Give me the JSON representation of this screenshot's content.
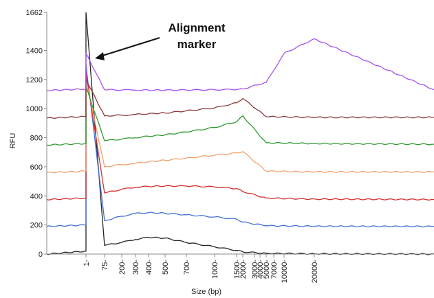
{
  "chart_data": {
    "type": "line",
    "title": "",
    "xlabel": "Size (bp)",
    "ylabel": "RFU",
    "ylim": [
      0,
      1662
    ],
    "y_ticks": [
      0,
      200,
      400,
      600,
      800,
      1000,
      1200,
      1400,
      1662
    ],
    "x_tick_labels": [
      "1",
      "75",
      "200",
      "300",
      "400",
      "500",
      "700",
      "1000",
      "1500",
      "2000",
      "3000",
      "4000",
      "5000",
      "7000",
      "10000",
      "20000"
    ],
    "grid": false,
    "legend": "none",
    "annotation": {
      "lines": [
        "Alignment",
        "marker"
      ]
    },
    "series": [
      {
        "color": "#222222",
        "baseline": 0,
        "points": [
          [
            "ladder",
            0
          ],
          [
            "1",
            20
          ],
          [
            "1",
            1662
          ],
          [
            "75",
            60
          ],
          [
            "200",
            80
          ],
          [
            "300",
            100
          ],
          [
            "400",
            115
          ],
          [
            "500",
            110
          ],
          [
            "700",
            80
          ],
          [
            "1000",
            50
          ],
          [
            "1500",
            25
          ],
          [
            "2000",
            15
          ],
          [
            "5000",
            5
          ],
          [
            "20000",
            2
          ],
          [
            "end",
            0
          ]
        ]
      },
      {
        "color": "#3f6fd8",
        "baseline": 190,
        "points": [
          [
            "ladder",
            190
          ],
          [
            "1",
            200
          ],
          [
            "1",
            1300
          ],
          [
            "75",
            230
          ],
          [
            "200",
            260
          ],
          [
            "300",
            280
          ],
          [
            "400",
            285
          ],
          [
            "500",
            280
          ],
          [
            "700",
            270
          ],
          [
            "1000",
            255
          ],
          [
            "1500",
            240
          ],
          [
            "2000",
            220
          ],
          [
            "5000",
            195
          ],
          [
            "20000",
            191
          ],
          [
            "end",
            190
          ]
        ]
      },
      {
        "color": "#d62d2d",
        "baseline": 375,
        "points": [
          [
            "ladder",
            375
          ],
          [
            "1",
            385
          ],
          [
            "1",
            1250
          ],
          [
            "75",
            420
          ],
          [
            "200",
            445
          ],
          [
            "300",
            458
          ],
          [
            "400",
            465
          ],
          [
            "500",
            468
          ],
          [
            "700",
            468
          ],
          [
            "1000",
            462
          ],
          [
            "1500",
            450
          ],
          [
            "2000",
            430
          ],
          [
            "5000",
            385
          ],
          [
            "20000",
            378
          ],
          [
            "end",
            375
          ]
        ]
      },
      {
        "color": "#f4a06a",
        "baseline": 560,
        "points": [
          [
            "ladder",
            560
          ],
          [
            "1",
            570
          ],
          [
            "1",
            1200
          ],
          [
            "75",
            600
          ],
          [
            "200",
            615
          ],
          [
            "300",
            625
          ],
          [
            "400",
            635
          ],
          [
            "500",
            645
          ],
          [
            "700",
            660
          ],
          [
            "1000",
            680
          ],
          [
            "1500",
            695
          ],
          [
            "2000",
            705
          ],
          [
            "5000",
            570
          ],
          [
            "20000",
            565
          ],
          [
            "end",
            565
          ]
        ]
      },
      {
        "color": "#2e9a2e",
        "baseline": 750,
        "points": [
          [
            "ladder",
            750
          ],
          [
            "1",
            760
          ],
          [
            "1",
            1150
          ],
          [
            "75",
            780
          ],
          [
            "200",
            790
          ],
          [
            "300",
            800
          ],
          [
            "400",
            810
          ],
          [
            "500",
            820
          ],
          [
            "700",
            840
          ],
          [
            "1000",
            870
          ],
          [
            "1500",
            910
          ],
          [
            "2000",
            950
          ],
          [
            "5000",
            765
          ],
          [
            "20000",
            760
          ],
          [
            "end",
            755
          ]
        ]
      },
      {
        "color": "#8b3a3a",
        "baseline": 935,
        "points": [
          [
            "ladder",
            935
          ],
          [
            "1",
            945
          ],
          [
            "1",
            1200
          ],
          [
            "75",
            950
          ],
          [
            "200",
            955
          ],
          [
            "300",
            960
          ],
          [
            "400",
            965
          ],
          [
            "500",
            970
          ],
          [
            "700",
            985
          ],
          [
            "1000",
            1005
          ],
          [
            "1500",
            1040
          ],
          [
            "2000",
            1070
          ],
          [
            "5000",
            945
          ],
          [
            "20000",
            940
          ],
          [
            "end",
            940
          ]
        ]
      },
      {
        "color": "#a64ff0",
        "baseline": 1125,
        "points": [
          [
            "ladder",
            1125
          ],
          [
            "1",
            1135
          ],
          [
            "1",
            1380
          ],
          [
            "75",
            1130
          ],
          [
            "200",
            1128
          ],
          [
            "300",
            1127
          ],
          [
            "400",
            1127
          ],
          [
            "500",
            1127
          ],
          [
            "700",
            1128
          ],
          [
            "1000",
            1130
          ],
          [
            "1500",
            1132
          ],
          [
            "2000",
            1135
          ],
          [
            "5000",
            1180
          ],
          [
            "10000",
            1380
          ],
          [
            "20000",
            1480
          ],
          [
            "end",
            1130
          ]
        ]
      }
    ]
  }
}
